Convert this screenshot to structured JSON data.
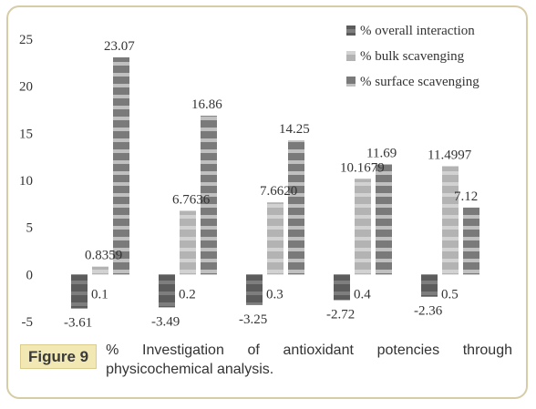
{
  "chart_data": {
    "type": "bar",
    "categories": [
      "0.1",
      "0.2",
      "0.3",
      "0.4",
      "0.5"
    ],
    "series": [
      {
        "name": "% overall interaction",
        "values": [
          -3.61,
          -3.49,
          -3.25,
          -2.72,
          -2.36
        ],
        "labels": [
          "-3.61",
          "-3.49",
          "-3.25",
          "-2.72",
          "-2.36"
        ],
        "color": "#5c5c5c"
      },
      {
        "name": "% bulk scavenging",
        "values": [
          0.8359,
          6.7636,
          7.662,
          10.1679,
          11.4997
        ],
        "labels": [
          "0.8359",
          "6.7636",
          "7.6620",
          "10.1679",
          "11.4997"
        ],
        "color": "#b3b3b3"
      },
      {
        "name": "% surface scavenging",
        "values": [
          23.07,
          16.86,
          14.25,
          11.69,
          7.12
        ],
        "labels": [
          "23.07",
          "16.86",
          "14.25",
          "11.69",
          "7.12"
        ],
        "color": "#7a7a7a"
      }
    ],
    "yticks": [
      "-5",
      "0",
      "5",
      "10",
      "15",
      "20",
      "25"
    ],
    "ylim": [
      -5,
      25
    ],
    "grid": false,
    "legend_position": "top-right"
  },
  "caption": {
    "figure_label": "Figure 9",
    "text": "% Investigation of antioxidant potencies through physicochemical analysis."
  }
}
